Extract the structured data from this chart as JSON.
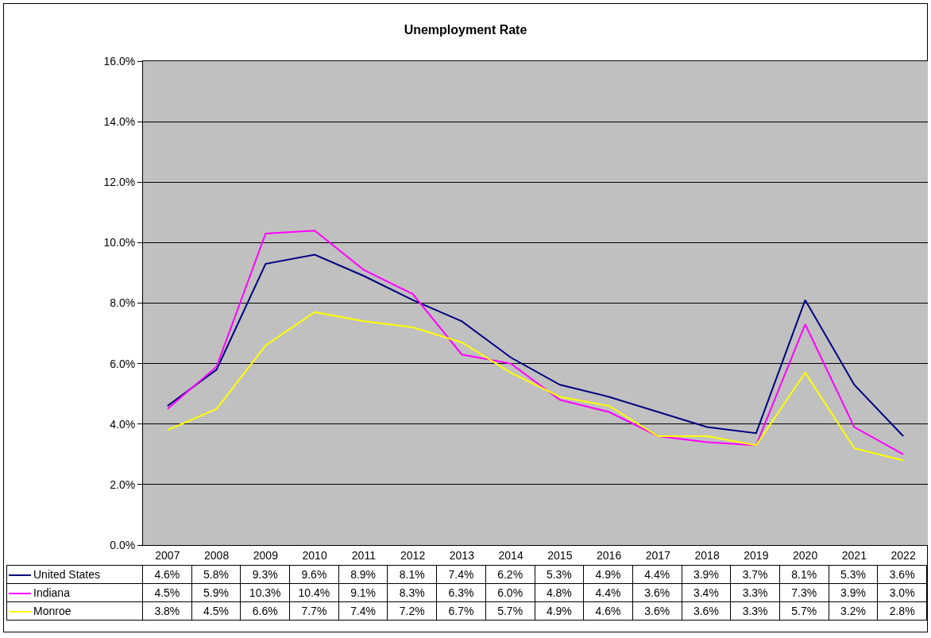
{
  "chart_data": {
    "type": "line",
    "title": "Unemployment Rate",
    "categories": [
      "2007",
      "2008",
      "2009",
      "2010",
      "2011",
      "2012",
      "2013",
      "2014",
      "2015",
      "2016",
      "2017",
      "2018",
      "2019",
      "2020",
      "2021",
      "2022"
    ],
    "series": [
      {
        "name": "United States",
        "color": "#000080",
        "values": [
          4.6,
          5.8,
          9.3,
          9.6,
          8.9,
          8.1,
          7.4,
          6.2,
          5.3,
          4.9,
          4.4,
          3.9,
          3.7,
          8.1,
          5.3,
          3.6
        ],
        "value_labels": [
          "4.6%",
          "5.8%",
          "9.3%",
          "9.6%",
          "8.9%",
          "8.1%",
          "7.4%",
          "6.2%",
          "5.3%",
          "4.9%",
          "4.4%",
          "3.9%",
          "3.7%",
          "8.1%",
          "5.3%",
          "3.6%"
        ]
      },
      {
        "name": "Indiana",
        "color": "#ff00ff",
        "values": [
          4.5,
          5.9,
          10.3,
          10.4,
          9.1,
          8.3,
          6.3,
          6.0,
          4.8,
          4.4,
          3.6,
          3.4,
          3.3,
          7.3,
          3.9,
          3.0
        ],
        "value_labels": [
          "4.5%",
          "5.9%",
          "10.3%",
          "10.4%",
          "9.1%",
          "8.3%",
          "6.3%",
          "6.0%",
          "4.8%",
          "4.4%",
          "3.6%",
          "3.4%",
          "3.3%",
          "7.3%",
          "3.9%",
          "3.0%"
        ]
      },
      {
        "name": "Monroe",
        "color": "#ffff00",
        "values": [
          3.8,
          4.5,
          6.6,
          7.7,
          7.4,
          7.2,
          6.7,
          5.7,
          4.9,
          4.6,
          3.6,
          3.6,
          3.3,
          5.7,
          3.2,
          2.8
        ],
        "value_labels": [
          "3.8%",
          "4.5%",
          "6.6%",
          "7.7%",
          "7.4%",
          "7.2%",
          "6.7%",
          "5.7%",
          "4.9%",
          "4.6%",
          "3.6%",
          "3.6%",
          "3.3%",
          "5.7%",
          "3.2%",
          "2.8%"
        ]
      }
    ],
    "ylim": [
      0,
      16
    ],
    "yticks": [
      {
        "value": 0,
        "label": "0.0%"
      },
      {
        "value": 2,
        "label": "2.0%"
      },
      {
        "value": 4,
        "label": "4.0%"
      },
      {
        "value": 6,
        "label": "6.0%"
      },
      {
        "value": 8,
        "label": "8.0%"
      },
      {
        "value": 10,
        "label": "10.0%"
      },
      {
        "value": 12,
        "label": "12.0%"
      },
      {
        "value": 14,
        "label": "14.0%"
      },
      {
        "value": 16,
        "label": "16.0%"
      }
    ],
    "grid": "y",
    "legend": "bottom",
    "marker": "none",
    "line_style": "solid"
  }
}
